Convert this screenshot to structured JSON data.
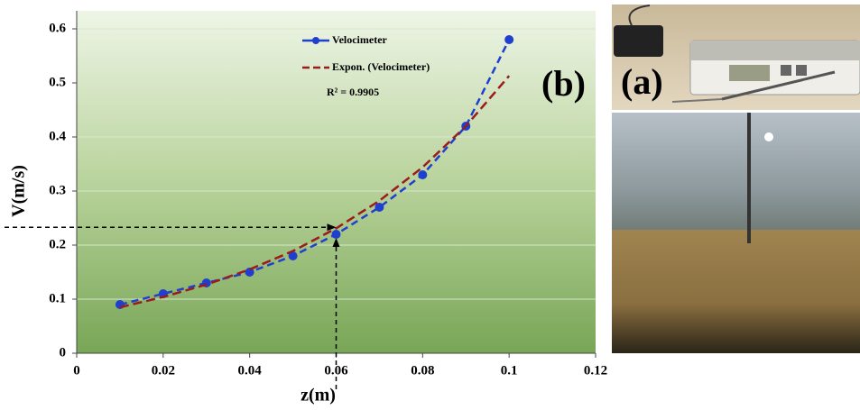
{
  "chart_data": {
    "type": "line",
    "x_label": "z(m)",
    "y_label": "V(m/s)",
    "x": [
      0.01,
      0.02,
      0.03,
      0.04,
      0.05,
      0.06,
      0.07,
      0.08,
      0.09,
      0.1
    ],
    "series": [
      {
        "name": "Velocimeter",
        "color": "#1f3fd0",
        "values": [
          0.09,
          0.11,
          0.13,
          0.15,
          0.18,
          0.22,
          0.27,
          0.33,
          0.42,
          0.58
        ]
      },
      {
        "name": "Expon. (Velocimeter)",
        "color": "#9b1c1c",
        "values": [
          0.085,
          0.104,
          0.127,
          0.155,
          0.189,
          0.231,
          0.282,
          0.344,
          0.42,
          0.513
        ]
      }
    ],
    "annotation": "R² = 0.9905",
    "guide": {
      "x": 0.06,
      "y": 0.233
    },
    "panel_b": "(b)",
    "panel_a": "(a)",
    "xlim": [
      0,
      0.12
    ],
    "xticks": [
      0,
      0.02,
      0.04,
      0.06,
      0.08,
      0.1,
      0.12
    ],
    "ylim": [
      0,
      0.6
    ],
    "yticks": [
      0,
      0.1,
      0.2,
      0.3,
      0.4,
      0.5,
      0.6
    ],
    "grid": true
  }
}
